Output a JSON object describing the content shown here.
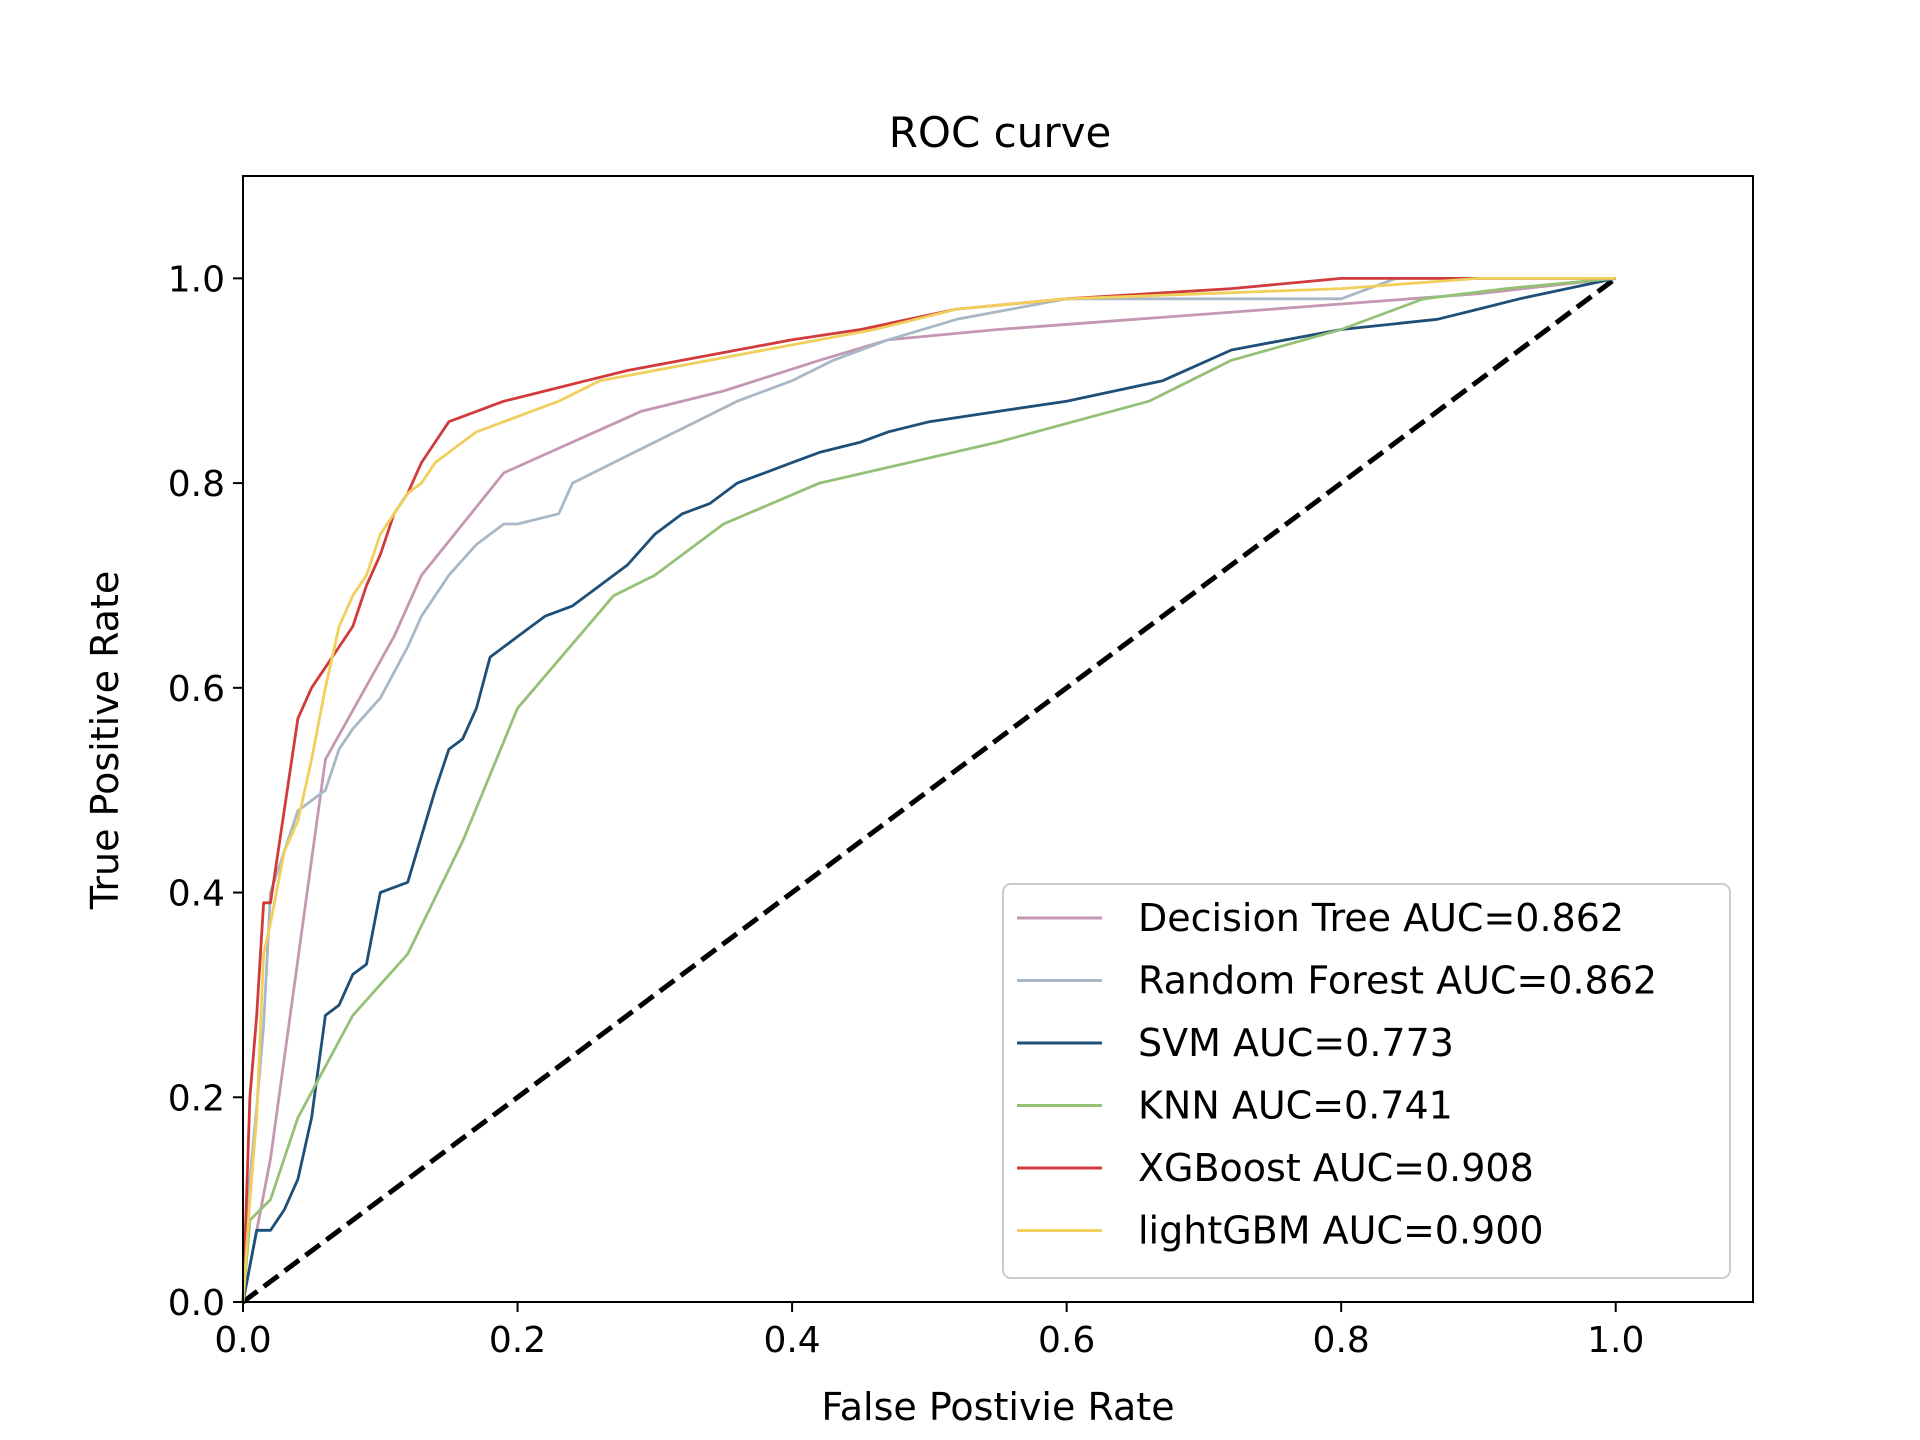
{
  "chart_data": {
    "type": "line",
    "title": "ROC curve",
    "xlabel": "False Postivie Rate",
    "ylabel": "True Positive Rate",
    "xlim": [
      0,
      1.1
    ],
    "ylim": [
      0,
      1.1
    ],
    "xticks": [
      "0.0",
      "0.2",
      "0.4",
      "0.6",
      "0.8",
      "1.0"
    ],
    "yticks": [
      "0.0",
      "0.2",
      "0.4",
      "0.6",
      "0.8",
      "1.0"
    ],
    "grid": false,
    "legend_position": "lower-right",
    "reference_line": {
      "x": [
        0,
        1
      ],
      "y": [
        0,
        1
      ],
      "color": "#000000",
      "style": "dashed"
    },
    "series": [
      {
        "name": "Decision Tree AUC=0.862",
        "color": "#c497b2",
        "x": [
          0,
          0.02,
          0.06,
          0.11,
          0.13,
          0.19,
          0.29,
          0.35,
          0.42,
          0.47,
          0.55,
          0.65,
          0.8,
          0.9,
          1.0
        ],
        "y": [
          0,
          0.14,
          0.53,
          0.65,
          0.71,
          0.81,
          0.87,
          0.89,
          0.92,
          0.94,
          0.95,
          0.96,
          0.975,
          0.985,
          1.0
        ]
      },
      {
        "name": "Random Forest AUC=0.862",
        "color": "#a9b8c6",
        "x": [
          0,
          0.005,
          0.01,
          0.015,
          0.02,
          0.04,
          0.06,
          0.07,
          0.08,
          0.1,
          0.12,
          0.13,
          0.15,
          0.17,
          0.19,
          0.2,
          0.23,
          0.24,
          0.27,
          0.3,
          0.33,
          0.36,
          0.4,
          0.43,
          0.47,
          0.52,
          0.6,
          0.7,
          0.8,
          0.84,
          0.9,
          0.93,
          1.0
        ],
        "y": [
          0,
          0.12,
          0.19,
          0.27,
          0.4,
          0.48,
          0.5,
          0.54,
          0.56,
          0.59,
          0.64,
          0.67,
          0.71,
          0.74,
          0.76,
          0.76,
          0.77,
          0.8,
          0.82,
          0.84,
          0.86,
          0.88,
          0.9,
          0.92,
          0.94,
          0.96,
          0.98,
          0.98,
          0.98,
          1.0,
          1.0,
          1.0,
          1.0
        ]
      },
      {
        "name": "SVM AUC=0.773",
        "color": "#1e4f78",
        "x": [
          0,
          0.01,
          0.02,
          0.03,
          0.04,
          0.05,
          0.06,
          0.07,
          0.08,
          0.09,
          0.1,
          0.12,
          0.14,
          0.15,
          0.16,
          0.17,
          0.18,
          0.19,
          0.2,
          0.22,
          0.24,
          0.26,
          0.28,
          0.3,
          0.32,
          0.34,
          0.36,
          0.38,
          0.4,
          0.42,
          0.45,
          0.47,
          0.5,
          0.55,
          0.6,
          0.67,
          0.72,
          0.8,
          0.87,
          0.9,
          0.93,
          1.0
        ],
        "y": [
          0,
          0.07,
          0.07,
          0.09,
          0.12,
          0.18,
          0.28,
          0.29,
          0.32,
          0.33,
          0.4,
          0.41,
          0.5,
          0.54,
          0.55,
          0.58,
          0.63,
          0.64,
          0.65,
          0.67,
          0.68,
          0.7,
          0.72,
          0.75,
          0.77,
          0.78,
          0.8,
          0.81,
          0.82,
          0.83,
          0.84,
          0.85,
          0.86,
          0.87,
          0.88,
          0.9,
          0.93,
          0.95,
          0.96,
          0.97,
          0.98,
          1.0
        ]
      },
      {
        "name": "KNN AUC=0.741",
        "color": "#95c177",
        "x": [
          0,
          0.005,
          0.02,
          0.04,
          0.08,
          0.12,
          0.16,
          0.2,
          0.27,
          0.3,
          0.32,
          0.35,
          0.42,
          0.55,
          0.66,
          0.72,
          0.8,
          0.86,
          0.92,
          1.0
        ],
        "y": [
          0,
          0.08,
          0.1,
          0.18,
          0.28,
          0.34,
          0.45,
          0.58,
          0.69,
          0.71,
          0.73,
          0.76,
          0.8,
          0.84,
          0.88,
          0.92,
          0.95,
          0.98,
          0.99,
          1.0
        ]
      },
      {
        "name": "XGBoost AUC=0.908",
        "color": "#d13b3b",
        "x": [
          0,
          0.005,
          0.01,
          0.015,
          0.02,
          0.03,
          0.04,
          0.05,
          0.06,
          0.07,
          0.08,
          0.09,
          0.1,
          0.11,
          0.12,
          0.13,
          0.14,
          0.15,
          0.17,
          0.19,
          0.22,
          0.25,
          0.28,
          0.32,
          0.36,
          0.4,
          0.45,
          0.52,
          0.6,
          0.72,
          0.8,
          0.9,
          1.0
        ],
        "y": [
          0,
          0.2,
          0.28,
          0.39,
          0.39,
          0.48,
          0.57,
          0.6,
          0.62,
          0.64,
          0.66,
          0.7,
          0.73,
          0.77,
          0.79,
          0.82,
          0.84,
          0.86,
          0.87,
          0.88,
          0.89,
          0.9,
          0.91,
          0.92,
          0.93,
          0.94,
          0.95,
          0.97,
          0.98,
          0.99,
          1.0,
          1.0,
          1.0
        ]
      },
      {
        "name": "lightGBM AUC=0.900",
        "color": "#f0cf5c",
        "x": [
          0,
          0.005,
          0.01,
          0.015,
          0.02,
          0.03,
          0.04,
          0.05,
          0.06,
          0.07,
          0.08,
          0.09,
          0.1,
          0.11,
          0.12,
          0.13,
          0.14,
          0.15,
          0.17,
          0.19,
          0.21,
          0.23,
          0.26,
          0.3,
          0.34,
          0.38,
          0.42,
          0.46,
          0.52,
          0.6,
          0.7,
          0.8,
          0.9,
          1.0
        ],
        "y": [
          0,
          0.1,
          0.18,
          0.34,
          0.37,
          0.44,
          0.47,
          0.53,
          0.6,
          0.66,
          0.69,
          0.71,
          0.75,
          0.77,
          0.79,
          0.8,
          0.82,
          0.83,
          0.85,
          0.86,
          0.87,
          0.88,
          0.9,
          0.91,
          0.92,
          0.93,
          0.94,
          0.95,
          0.97,
          0.98,
          0.985,
          0.99,
          1.0,
          1.0
        ]
      }
    ]
  }
}
